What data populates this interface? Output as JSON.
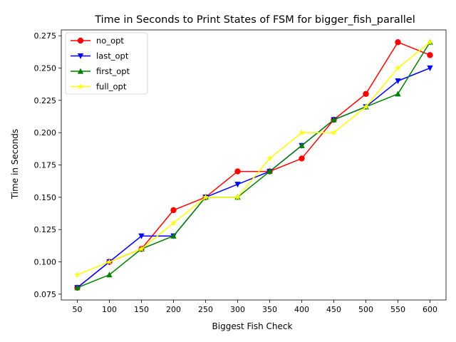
{
  "chart_data": {
    "type": "line",
    "title": "Time in Seconds to Print States of FSM for bigger_fish_parallel",
    "xlabel": "Biggest Fish Check",
    "ylabel": "Time in Seconds",
    "x": [
      50,
      100,
      150,
      200,
      250,
      300,
      350,
      400,
      450,
      500,
      550,
      600
    ],
    "x_tick_labels": [
      "50",
      "100",
      "150",
      "200",
      "250",
      "300",
      "350",
      "400",
      "450",
      "500",
      "550",
      "600"
    ],
    "y_ticks": [
      0.075,
      0.1,
      0.125,
      0.15,
      0.175,
      0.2,
      0.225,
      0.25,
      0.275
    ],
    "y_tick_labels": [
      "0.075",
      "0.100",
      "0.125",
      "0.150",
      "0.175",
      "0.200",
      "0.225",
      "0.250",
      "0.275"
    ],
    "xlim": [
      25,
      625
    ],
    "ylim": [
      0.0705,
      0.2795
    ],
    "grid": false,
    "legend_position": "upper-left",
    "series": [
      {
        "name": "no_opt",
        "color": "#ff0000",
        "marker": "circle",
        "values": [
          0.08,
          0.1,
          0.11,
          0.14,
          0.15,
          0.17,
          0.17,
          0.18,
          0.21,
          0.23,
          0.27,
          0.26
        ]
      },
      {
        "name": "last_opt",
        "color": "#0000ff",
        "marker": "triangle-down",
        "values": [
          0.08,
          0.1,
          0.12,
          0.12,
          0.15,
          0.16,
          0.17,
          0.19,
          0.21,
          0.22,
          0.24,
          0.25
        ]
      },
      {
        "name": "first_opt",
        "color": "#008000",
        "marker": "triangle-up",
        "values": [
          0.08,
          0.09,
          0.11,
          0.12,
          0.15,
          0.15,
          0.17,
          0.19,
          0.21,
          0.22,
          0.23,
          0.27
        ]
      },
      {
        "name": "full_opt",
        "color": "#ffff00",
        "marker": "star",
        "values": [
          0.09,
          0.1,
          0.11,
          0.13,
          0.15,
          0.15,
          0.18,
          0.2,
          0.2,
          0.22,
          0.25,
          0.27
        ]
      }
    ]
  }
}
